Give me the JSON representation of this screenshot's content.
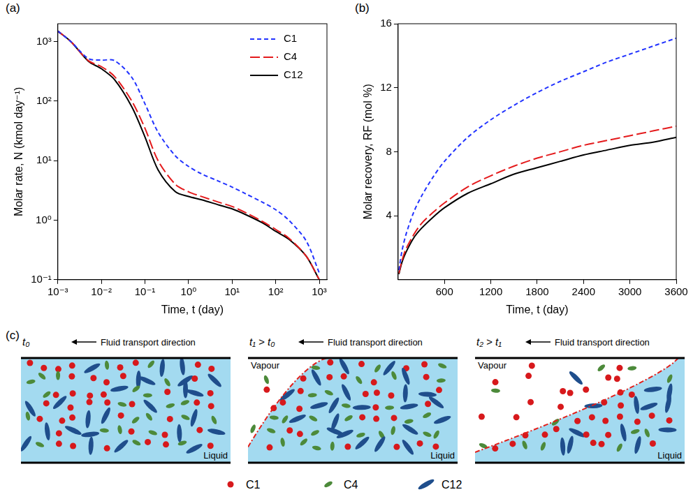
{
  "chart_data": [
    {
      "panel_label": "(a)",
      "type": "line",
      "log": true,
      "grid": false,
      "legend": "upper right",
      "x_label": "Time, t (day)",
      "y_label": "Molar rate, N (kmol day⁻¹)",
      "xlim": [
        0.001,
        1500
      ],
      "ylim": [
        0.1,
        2000
      ],
      "xticks": [
        {
          "value": 0.001,
          "label": "10⁻³"
        },
        {
          "value": 0.01,
          "label": "10⁻²"
        },
        {
          "value": 0.1,
          "label": "10⁻¹"
        },
        {
          "value": 1,
          "label": "10⁰"
        },
        {
          "value": 10,
          "label": "10¹"
        },
        {
          "value": 100,
          "label": "10²"
        },
        {
          "value": 1000,
          "label": "10³"
        }
      ],
      "yticks": [
        {
          "value": 0.1,
          "label": "10⁻¹"
        },
        {
          "value": 1,
          "label": "10⁰"
        },
        {
          "value": 10,
          "label": "10¹"
        },
        {
          "value": 100,
          "label": "10²"
        },
        {
          "value": 1000,
          "label": "10³"
        }
      ],
      "x": [
        0.001,
        0.002,
        0.005,
        0.01,
        0.02,
        0.05,
        0.1,
        0.2,
        0.5,
        1,
        2,
        5,
        10,
        20,
        50,
        100,
        200,
        500,
        1000
      ],
      "series": [
        {
          "name": "C1",
          "color": "#2233ff",
          "line_style": "dashed",
          "values": [
            1500,
            1000,
            520,
            490,
            480,
            250,
            90,
            30,
            12,
            8,
            6,
            4.5,
            3.6,
            2.8,
            2.0,
            1.5,
            1.0,
            0.45,
            0.13
          ]
        },
        {
          "name": "C4",
          "color": "#e41a1c",
          "line_style": "long-dashed",
          "values": [
            1500,
            1000,
            480,
            380,
            260,
            100,
            35,
            10,
            4,
            3.0,
            2.5,
            2.0,
            1.7,
            1.35,
            0.95,
            0.7,
            0.5,
            0.25,
            0.1
          ]
        },
        {
          "name": "C12",
          "color": "#000000",
          "line_style": "solid",
          "values": [
            1500,
            1000,
            470,
            350,
            230,
            80,
            25,
            7,
            3,
            2.5,
            2.2,
            1.8,
            1.55,
            1.25,
            0.9,
            0.65,
            0.48,
            0.25,
            0.1
          ]
        }
      ]
    },
    {
      "panel_label": "(b)",
      "type": "line",
      "grid": false,
      "x_label": "Time, t (day)",
      "y_label": "Molar recovery, RF (mol %)",
      "xlim": [
        0,
        3600
      ],
      "ylim": [
        0,
        16
      ],
      "xticks": [
        600,
        1200,
        1800,
        2400,
        3000,
        3600
      ],
      "yticks": [
        4,
        8,
        12,
        16
      ],
      "x": [
        10,
        50,
        100,
        200,
        300,
        450,
        600,
        900,
        1200,
        1500,
        1800,
        2100,
        2400,
        2700,
        3000,
        3300,
        3600
      ],
      "series": [
        {
          "name": "C1",
          "color": "#2233ff",
          "line_style": "dashed",
          "values": [
            0.6,
            1.8,
            2.8,
            4.2,
            5.2,
            6.4,
            7.4,
            8.9,
            10.0,
            10.9,
            11.7,
            12.4,
            13.0,
            13.6,
            14.1,
            14.6,
            15.1
          ]
        },
        {
          "name": "C4",
          "color": "#e41a1c",
          "line_style": "long-dashed",
          "values": [
            0.4,
            1.2,
            1.9,
            2.8,
            3.5,
            4.2,
            4.8,
            5.8,
            6.5,
            7.1,
            7.6,
            8.0,
            8.4,
            8.7,
            9.0,
            9.3,
            9.6
          ]
        },
        {
          "name": "C12",
          "color": "#000000",
          "line_style": "solid",
          "values": [
            0.35,
            1.1,
            1.7,
            2.6,
            3.2,
            3.9,
            4.5,
            5.4,
            6.0,
            6.6,
            7.0,
            7.4,
            7.8,
            8.1,
            8.4,
            8.6,
            8.9
          ]
        }
      ]
    }
  ],
  "diagram": {
    "panel_label": "(c)",
    "panels": [
      {
        "time_label": "t₀",
        "arrow_label": "Fluid transport direction",
        "phase_labels": [
          "Liquid"
        ]
      },
      {
        "time_label": "t₁ > t₀",
        "arrow_label": "Fluid transport direction",
        "phase_labels": [
          "Vapour",
          "Liquid"
        ]
      },
      {
        "time_label": "t₂ > t₁",
        "arrow_label": "Fluid transport direction",
        "phase_labels": [
          "Vapour",
          "Liquid"
        ]
      }
    ],
    "legend": [
      {
        "name": "C1",
        "color": "#d7191c",
        "shape": "circle"
      },
      {
        "name": "C4",
        "color": "#4c8a3a",
        "shape": "ellipse"
      },
      {
        "name": "C12",
        "color": "#1f4e8c",
        "shape": "long-ellipse"
      }
    ]
  }
}
